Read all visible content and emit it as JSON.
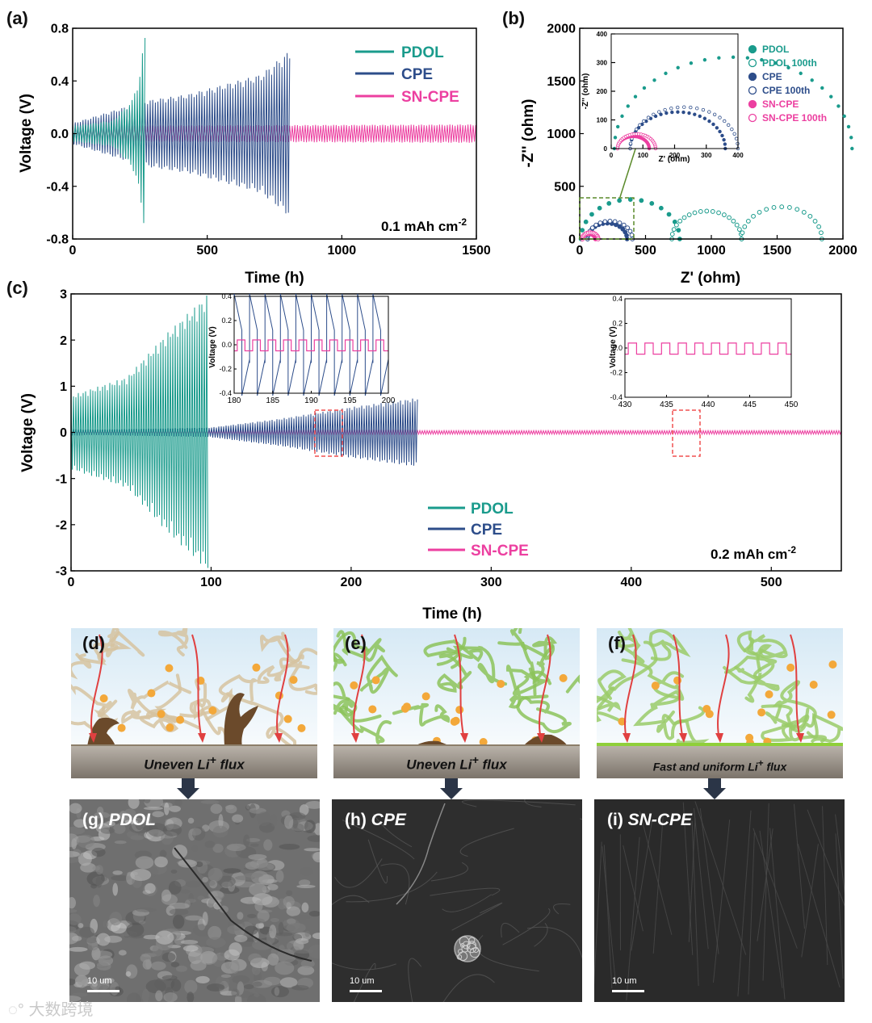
{
  "panels": {
    "a": {
      "label": "(a)"
    },
    "b": {
      "label": "(b)"
    },
    "c": {
      "label": "(c)"
    },
    "d": {
      "label": "(d)",
      "flux": "Uneven Li",
      "sup": "+",
      "flux2": " flux"
    },
    "e": {
      "label": "(e)",
      "flux": "Uneven Li",
      "sup": "+",
      "flux2": " flux"
    },
    "f": {
      "label": "(f)",
      "flux": "Fast and uniform Li",
      "sup": "+",
      "flux2": " flux"
    },
    "g": {
      "label": "(g)",
      "name": "PDOL",
      "scale": "10 um"
    },
    "h": {
      "label": "(h)",
      "name": "CPE",
      "scale": "10 um"
    },
    "i": {
      "label": "(i)",
      "name": "SN-CPE",
      "scale": "10 um"
    }
  },
  "colors": {
    "PDOL": "#1a9b8c",
    "CPE": "#2d4d8a",
    "SN-CPE": "#ec3fa0",
    "arrow": "#e04040",
    "particle": "#f3a83a",
    "dendrite": "#6b4a2b"
  },
  "watermark": "大数跨境",
  "chart_data": [
    {
      "type": "line",
      "panel": "a",
      "xlabel": "Time (h)",
      "ylabel": "Voltage (V)",
      "xlim": [
        0,
        1500
      ],
      "ylim": [
        -0.8,
        0.8
      ],
      "xticks": [
        "0",
        "500",
        "1000",
        "1500"
      ],
      "yticks": [
        "-0.8",
        "-0.4",
        "0.0",
        "0.4",
        "0.8"
      ],
      "annotation": "0.1 mAh cm",
      "annotation_sup": "-2",
      "legend": [
        "PDOL",
        "CPE",
        "SN-CPE"
      ],
      "series": [
        {
          "name": "PDOL",
          "t_end": 270,
          "amp": [
            [
              0,
              0.06
            ],
            [
              150,
              0.1
            ],
            [
              220,
              0.25
            ],
            [
              250,
              0.45
            ],
            [
              270,
              0.8
            ]
          ]
        },
        {
          "name": "CPE",
          "t_end": 810,
          "amp": [
            [
              0,
              0.08
            ],
            [
              270,
              0.25
            ],
            [
              430,
              0.3
            ],
            [
              700,
              0.45
            ],
            [
              800,
              0.62
            ],
            [
              810,
              0.62
            ]
          ]
        },
        {
          "name": "SN-CPE",
          "t_end": 1500,
          "amp": [
            [
              0,
              0.06
            ],
            [
              1500,
              0.07
            ]
          ]
        }
      ]
    },
    {
      "type": "scatter",
      "panel": "b",
      "xlabel": "Z' (ohm)",
      "ylabel": "-Z'' (ohm)",
      "xlim": [
        0,
        2000
      ],
      "ylim": [
        0,
        2000
      ],
      "xticks": [
        "0",
        "500",
        "1000",
        "1500",
        "2000"
      ],
      "yticks": [
        "0",
        "500",
        "1000",
        "1500",
        "2000"
      ],
      "legend": [
        "PDOL",
        "PDOL 100th",
        "CPE",
        "CPE 100th",
        "SN-CPE",
        "SN-CPE 100th"
      ],
      "arcs": [
        {
          "name": "PDOL",
          "x0": 10,
          "x1": 760,
          "filled": true
        },
        {
          "name": "PDOL 100th",
          "x0": 700,
          "x1": 1230,
          "x2": 1840,
          "filled": false
        },
        {
          "name": "CPE",
          "x0": 60,
          "x1": 360,
          "filled": true
        },
        {
          "name": "CPE 100th",
          "x0": 60,
          "x1": 400,
          "filled": false
        },
        {
          "name": "SN-CPE",
          "x0": 20,
          "x1": 120,
          "filled": true
        },
        {
          "name": "SN-CPE 100th",
          "x0": 20,
          "x1": 140,
          "filled": false
        }
      ],
      "inset": {
        "xlabel": "Z' (ohm)",
        "ylabel": "-Z'' (ohm)",
        "xlim": [
          0,
          400
        ],
        "ylim": [
          0,
          400
        ],
        "xticks": [
          "0",
          "100",
          "200",
          "300",
          "400"
        ],
        "yticks": [
          "0",
          "100",
          "200",
          "300",
          "400"
        ]
      }
    },
    {
      "type": "line",
      "panel": "c",
      "xlabel": "Time (h)",
      "ylabel": "Voltage (V)",
      "xlim": [
        0,
        550
      ],
      "ylim": [
        -3,
        3
      ],
      "xticks": [
        "0",
        "100",
        "200",
        "300",
        "400",
        "500"
      ],
      "yticks": [
        "-3",
        "-2",
        "-1",
        "0",
        "1",
        "2",
        "3"
      ],
      "annotation": "0.2 mAh cm",
      "annotation_sup": "-2",
      "legend": [
        "PDOL",
        "CPE",
        "SN-CPE"
      ],
      "series": [
        {
          "name": "PDOL",
          "t_end": 98,
          "amp": [
            [
              0,
              0.8
            ],
            [
              40,
              1.2
            ],
            [
              70,
              2.2
            ],
            [
              98,
              3.0
            ]
          ]
        },
        {
          "name": "CPE",
          "t_end": 248,
          "amp": [
            [
              0,
              0.05
            ],
            [
              98,
              0.1
            ],
            [
              150,
              0.3
            ],
            [
              200,
              0.55
            ],
            [
              248,
              0.75
            ]
          ]
        },
        {
          "name": "SN-CPE",
          "t_end": 550,
          "amp": [
            [
              0,
              0.04
            ],
            [
              550,
              0.04
            ]
          ]
        }
      ],
      "insets": [
        {
          "xlim": [
            180,
            200
          ],
          "ylim": [
            -0.4,
            0.4
          ],
          "ylabel": "Voltage (V)",
          "xticks": [
            "180",
            "185",
            "190",
            "195",
            "200"
          ],
          "yticks": [
            "-0.4",
            "-0.2",
            "0.0",
            "0.2",
            "0.4"
          ]
        },
        {
          "xlim": [
            430,
            450
          ],
          "ylim": [
            -0.4,
            0.4
          ],
          "ylabel": "Voltage (V)",
          "xticks": [
            "430",
            "435",
            "440",
            "445",
            "450"
          ],
          "yticks": [
            "-0.4",
            "-0.2",
            "0.0",
            "0.2",
            "0.4"
          ]
        }
      ]
    }
  ]
}
